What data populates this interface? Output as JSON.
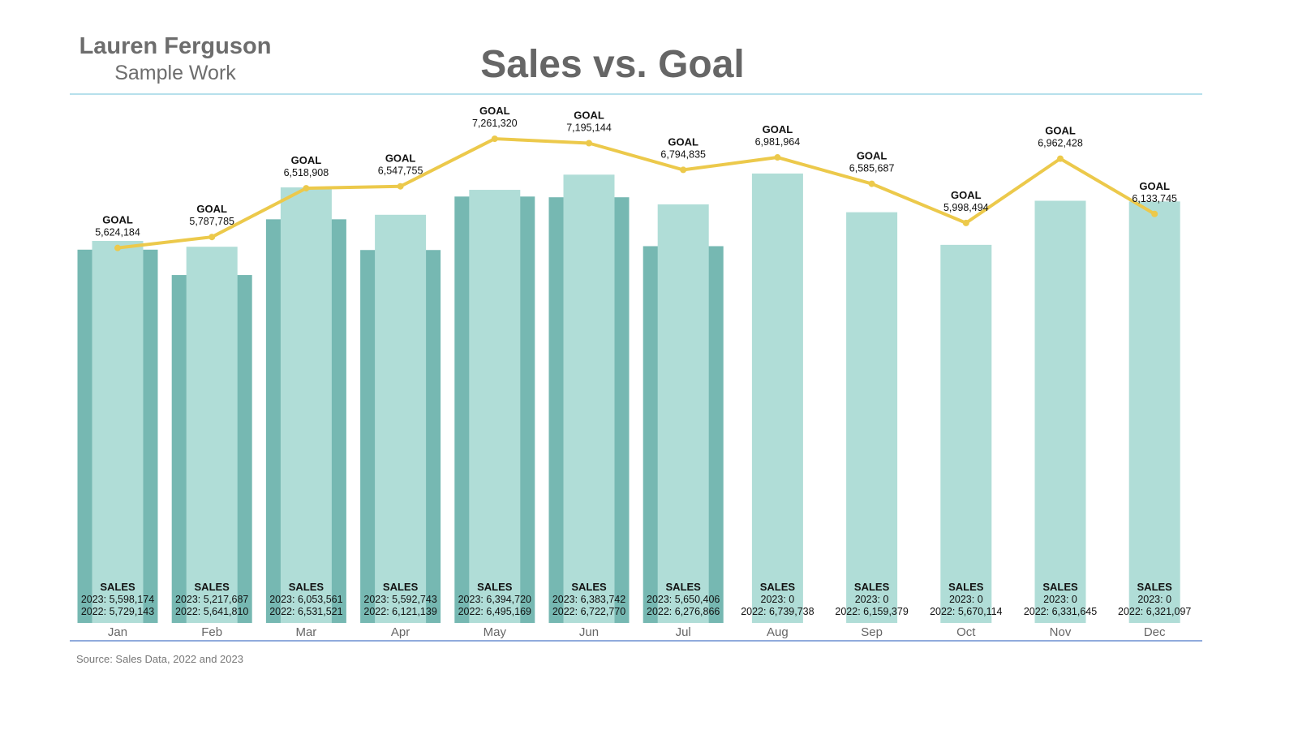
{
  "header": {
    "author": "Lauren Ferguson",
    "subtitle": "Sample Work",
    "title": "Sales vs. Goal"
  },
  "footer": {
    "source": "Source: Sales Data, 2022 and 2023"
  },
  "colors": {
    "bar_2022": "#b0ddd7",
    "bar_2023": "#76b8b2",
    "goal_line": "#ecc94b",
    "rule_top": "#9fd5e6",
    "rule_bottom": "#6c8fd1",
    "tick_text": "#666666"
  },
  "chart_data": {
    "type": "bar",
    "title": "Sales vs. Goal",
    "xlabel": "",
    "ylabel": "",
    "ylim": [
      0,
      7700000
    ],
    "grid": false,
    "legend": "none",
    "goal_label": "GOAL",
    "sales_label": "SALES",
    "categories": [
      "Jan",
      "Feb",
      "Mar",
      "Apr",
      "May",
      "Jun",
      "Jul",
      "Aug",
      "Sep",
      "Oct",
      "Nov",
      "Dec"
    ],
    "series": [
      {
        "name": "2023",
        "type": "bar",
        "values": [
          5598174,
          5217687,
          6053561,
          5592743,
          6394720,
          6383742,
          5650406,
          0,
          0,
          0,
          0,
          0
        ],
        "labels": [
          "5,598,174",
          "5,217,687",
          "6,053,561",
          "5,592,743",
          "6,394,720",
          "6,383,742",
          "5,650,406",
          "0",
          "0",
          "0",
          "0",
          "0"
        ]
      },
      {
        "name": "2022",
        "type": "bar",
        "values": [
          5729143,
          5641810,
          6531521,
          6121139,
          6495169,
          6722770,
          6276866,
          6739738,
          6159379,
          5670114,
          6331645,
          6321097
        ],
        "labels": [
          "5,729,143",
          "5,641,810",
          "6,531,521",
          "6,121,139",
          "6,495,169",
          "6,722,770",
          "6,276,866",
          "6,739,738",
          "6,159,379",
          "5,670,114",
          "6,331,645",
          "6,321,097"
        ]
      },
      {
        "name": "GOAL",
        "type": "line",
        "values": [
          5624184,
          5787785,
          6518908,
          6547755,
          7261320,
          7195144,
          6794835,
          6981964,
          6585687,
          5998494,
          6962428,
          6133745
        ],
        "labels": [
          "5,624,184",
          "5,787,785",
          "6,518,908",
          "6,547,755",
          "7,261,320",
          "7,195,144",
          "6,794,835",
          "6,981,964",
          "6,585,687",
          "5,998,494",
          "6,962,428",
          "6,133,745"
        ]
      }
    ]
  }
}
